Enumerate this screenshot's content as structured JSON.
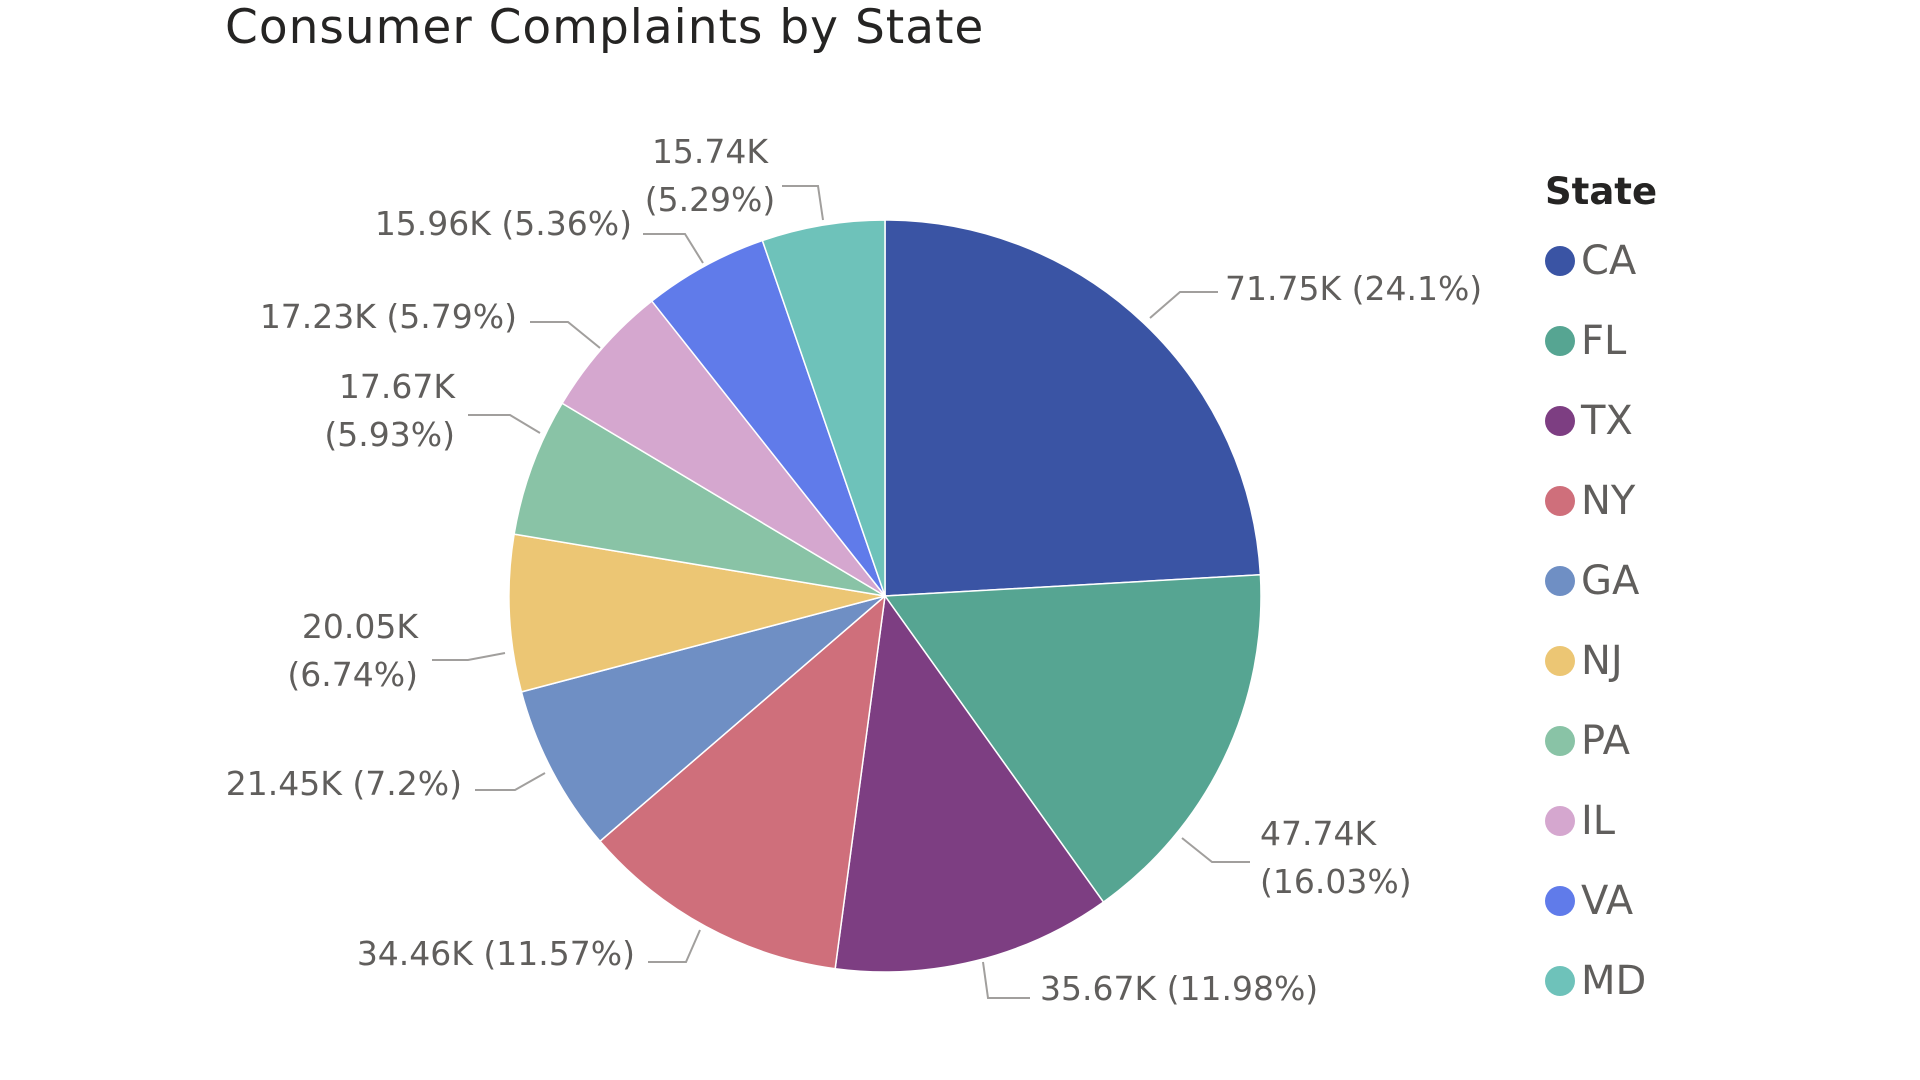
{
  "chart_data": {
    "type": "pie",
    "title": "Consumer Complaints by State",
    "legend_title": "State",
    "legend_position": "right",
    "slices": [
      {
        "label": "CA",
        "value": 71.75,
        "display": "71.75K (24.1%)",
        "percent": 24.1,
        "color": "#3a54a4"
      },
      {
        "label": "FL",
        "value": 47.74,
        "display": "47.74K (16.03%)",
        "percent": 16.03,
        "color": "#56a592"
      },
      {
        "label": "TX",
        "value": 35.67,
        "display": "35.67K (11.98%)",
        "percent": 11.98,
        "color": "#7d3e82"
      },
      {
        "label": "NY",
        "value": 34.46,
        "display": "34.46K (11.57%)",
        "percent": 11.57,
        "color": "#cf6f7b"
      },
      {
        "label": "GA",
        "value": 21.45,
        "display": "21.45K (7.2%)",
        "percent": 7.2,
        "color": "#6f8fc4"
      },
      {
        "label": "NJ",
        "value": 20.05,
        "display": "20.05K (6.74%)",
        "percent": 6.74,
        "color": "#ecc674"
      },
      {
        "label": "PA",
        "value": 17.67,
        "display": "17.67K (5.93%)",
        "percent": 5.93,
        "color": "#89c3a6"
      },
      {
        "label": "IL",
        "value": 17.23,
        "display": "17.23K (5.79%)",
        "percent": 5.79,
        "color": "#d5a7cf"
      },
      {
        "label": "VA",
        "value": 15.96,
        "display": "15.96K (5.36%)",
        "percent": 5.36,
        "color": "#607bea"
      },
      {
        "label": "MD",
        "value": 15.74,
        "display": "15.74K (5.29%)",
        "percent": 5.29,
        "color": "#6ec2ba"
      }
    ]
  }
}
